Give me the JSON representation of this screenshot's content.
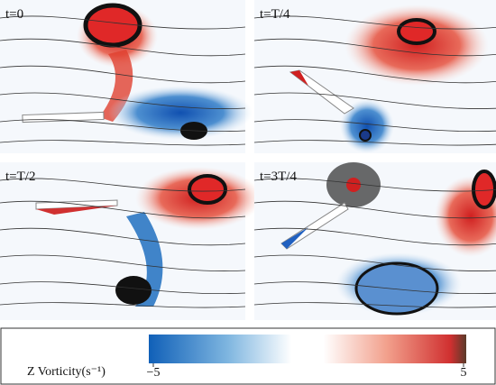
{
  "panels": [
    {
      "label": "t=0"
    },
    {
      "label": "t=T/4"
    },
    {
      "label": "t=T/2"
    },
    {
      "label": "t=3T/4"
    }
  ],
  "colorbar": {
    "label": "Z Vorticity(s⁻¹)",
    "lim": [
      -5,
      5
    ],
    "ticks": [
      {
        "value": -5,
        "label": "−5"
      },
      5
    ]
  }
}
